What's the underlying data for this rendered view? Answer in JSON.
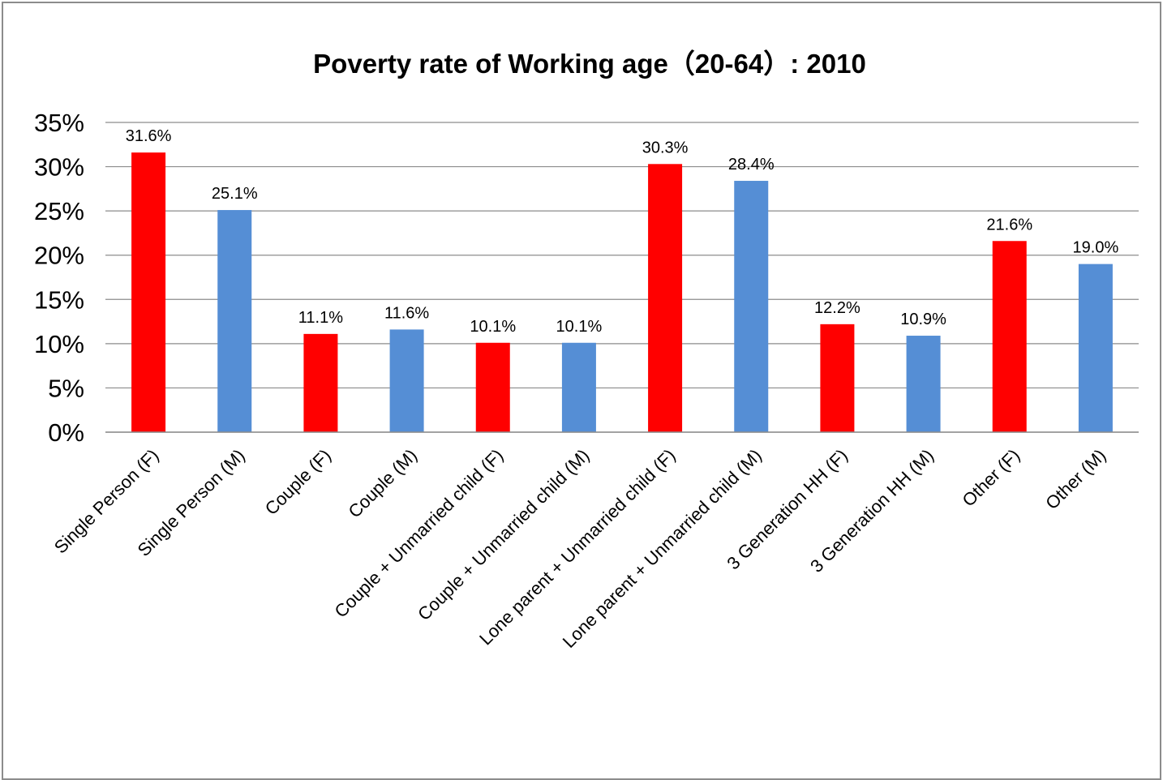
{
  "chart_data": {
    "type": "bar",
    "title": "Poverty rate of Working age（20-64）: 2010",
    "xlabel": "",
    "ylabel": "",
    "ylim": [
      0,
      0.35
    ],
    "yticks": [
      "0%",
      "5%",
      "10%",
      "15%",
      "20%",
      "25%",
      "30%",
      "35%"
    ],
    "grid": true,
    "legend": "none",
    "colors": {
      "F": "#ff0000",
      "M": "#558ed5",
      "grid": "#8c8c8c"
    },
    "categories": [
      "Single Person (F)",
      "Single Person (M)",
      "Couple (F)",
      "Couple (M)",
      "Couple + Unmarried child (F)",
      "Couple + Unmarried child (M)",
      "Lone parent + Unmarried child (F)",
      "Lone parent + Unmarried child (M)",
      "3 Generation HH (F)",
      "3 Generation HH (M)",
      "Other (F)",
      "Other (M)"
    ],
    "values": [
      0.316,
      0.251,
      0.111,
      0.116,
      0.101,
      0.101,
      0.303,
      0.284,
      0.122,
      0.109,
      0.216,
      0.19
    ],
    "data_labels": [
      "31.6%",
      "25.1%",
      "11.1%",
      "11.6%",
      "10.1%",
      "10.1%",
      "30.3%",
      "28.4%",
      "12.2%",
      "10.9%",
      "21.6%",
      "19.0%"
    ],
    "series_of_category": [
      "F",
      "M",
      "F",
      "M",
      "F",
      "M",
      "F",
      "M",
      "F",
      "M",
      "F",
      "M"
    ]
  }
}
